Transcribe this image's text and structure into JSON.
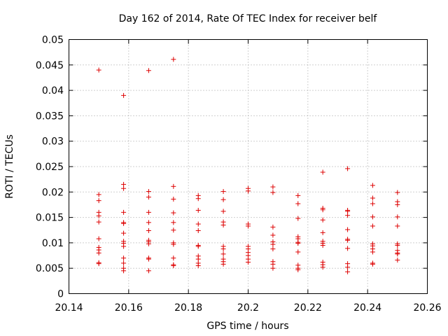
{
  "chart_data": {
    "type": "scatter",
    "title": "Day 162 of 2014, Rate Of TEC Index for receiver belf",
    "xlabel": "GPS time / hours",
    "ylabel": "ROTI / TECUs",
    "xlim": [
      20.14,
      20.26
    ],
    "ylim": [
      0,
      0.05
    ],
    "xticks": [
      "20.14",
      "20.16",
      "20.18",
      "20.2",
      "20.22",
      "20.24",
      "20.26"
    ],
    "yticks": [
      "0",
      "0.005",
      "0.01",
      "0.015",
      "0.02",
      "0.025",
      "0.03",
      "0.035",
      "0.04",
      "0.045",
      "0.05"
    ],
    "grid": true,
    "marker": "+",
    "color": "#dd0000",
    "series": [
      {
        "name": "ROTI",
        "points": [
          [
            20.15,
            0.044
          ],
          [
            20.15,
            0.0195
          ],
          [
            20.15,
            0.0183
          ],
          [
            20.15,
            0.016
          ],
          [
            20.15,
            0.0153
          ],
          [
            20.15,
            0.0141
          ],
          [
            20.15,
            0.0108
          ],
          [
            20.15,
            0.0091
          ],
          [
            20.15,
            0.0086
          ],
          [
            20.15,
            0.008
          ],
          [
            20.15,
            0.0061
          ],
          [
            20.15,
            0.0059
          ],
          [
            20.1583,
            0.039
          ],
          [
            20.1583,
            0.0215
          ],
          [
            20.1583,
            0.0207
          ],
          [
            20.1583,
            0.016
          ],
          [
            20.1583,
            0.014
          ],
          [
            20.1583,
            0.0138
          ],
          [
            20.1583,
            0.0119
          ],
          [
            20.1583,
            0.0103
          ],
          [
            20.1583,
            0.0099
          ],
          [
            20.1583,
            0.0093
          ],
          [
            20.1583,
            0.007
          ],
          [
            20.1583,
            0.006
          ],
          [
            20.1583,
            0.005
          ],
          [
            20.1583,
            0.0045
          ],
          [
            20.1667,
            0.0439
          ],
          [
            20.1667,
            0.0201
          ],
          [
            20.1667,
            0.019
          ],
          [
            20.1667,
            0.016
          ],
          [
            20.1667,
            0.014
          ],
          [
            20.1667,
            0.0124
          ],
          [
            20.1667,
            0.0105
          ],
          [
            20.1667,
            0.0102
          ],
          [
            20.1667,
            0.0098
          ],
          [
            20.1667,
            0.007
          ],
          [
            20.1667,
            0.0068
          ],
          [
            20.1667,
            0.0045
          ],
          [
            20.175,
            0.0461
          ],
          [
            20.175,
            0.0211
          ],
          [
            20.175,
            0.0186
          ],
          [
            20.175,
            0.0159
          ],
          [
            20.175,
            0.014
          ],
          [
            20.175,
            0.0125
          ],
          [
            20.175,
            0.01
          ],
          [
            20.175,
            0.0097
          ],
          [
            20.175,
            0.007
          ],
          [
            20.175,
            0.0057
          ],
          [
            20.175,
            0.0055
          ],
          [
            20.1833,
            0.0193
          ],
          [
            20.1833,
            0.0187
          ],
          [
            20.1833,
            0.0164
          ],
          [
            20.1833,
            0.0137
          ],
          [
            20.1833,
            0.0124
          ],
          [
            20.1833,
            0.0095
          ],
          [
            20.1833,
            0.0093
          ],
          [
            20.1833,
            0.0074
          ],
          [
            20.1833,
            0.0068
          ],
          [
            20.1833,
            0.006
          ],
          [
            20.1833,
            0.0055
          ],
          [
            20.1917,
            0.0201
          ],
          [
            20.1917,
            0.0185
          ],
          [
            20.1917,
            0.0162
          ],
          [
            20.1917,
            0.0141
          ],
          [
            20.1917,
            0.0135
          ],
          [
            20.1917,
            0.0093
          ],
          [
            20.1917,
            0.0088
          ],
          [
            20.1917,
            0.0078
          ],
          [
            20.1917,
            0.0068
          ],
          [
            20.1917,
            0.0063
          ],
          [
            20.1917,
            0.0058
          ],
          [
            20.2,
            0.0207
          ],
          [
            20.2,
            0.0202
          ],
          [
            20.2,
            0.0137
          ],
          [
            20.2,
            0.0133
          ],
          [
            20.2,
            0.0093
          ],
          [
            20.2,
            0.0088
          ],
          [
            20.2,
            0.0081
          ],
          [
            20.2,
            0.0075
          ],
          [
            20.2,
            0.0068
          ],
          [
            20.2,
            0.0062
          ],
          [
            20.2083,
            0.021
          ],
          [
            20.2083,
            0.0199
          ],
          [
            20.2083,
            0.0131
          ],
          [
            20.2083,
            0.0115
          ],
          [
            20.2083,
            0.0102
          ],
          [
            20.2083,
            0.0097
          ],
          [
            20.2083,
            0.0088
          ],
          [
            20.2083,
            0.0063
          ],
          [
            20.2083,
            0.0058
          ],
          [
            20.2083,
            0.005
          ],
          [
            20.2167,
            0.0193
          ],
          [
            20.2167,
            0.0177
          ],
          [
            20.2167,
            0.0148
          ],
          [
            20.2167,
            0.0112
          ],
          [
            20.2167,
            0.0108
          ],
          [
            20.2167,
            0.0101
          ],
          [
            20.2167,
            0.0099
          ],
          [
            20.2167,
            0.0082
          ],
          [
            20.2167,
            0.0056
          ],
          [
            20.2167,
            0.005
          ],
          [
            20.2167,
            0.0047
          ],
          [
            20.225,
            0.0239
          ],
          [
            20.225,
            0.0168
          ],
          [
            20.225,
            0.0165
          ],
          [
            20.225,
            0.0145
          ],
          [
            20.225,
            0.012
          ],
          [
            20.225,
            0.0103
          ],
          [
            20.225,
            0.0099
          ],
          [
            20.225,
            0.0095
          ],
          [
            20.225,
            0.0062
          ],
          [
            20.225,
            0.0057
          ],
          [
            20.225,
            0.0052
          ],
          [
            20.2333,
            0.0246
          ],
          [
            20.2333,
            0.0164
          ],
          [
            20.2333,
            0.0162
          ],
          [
            20.2333,
            0.0154
          ],
          [
            20.2333,
            0.0126
          ],
          [
            20.2333,
            0.0107
          ],
          [
            20.2333,
            0.0105
          ],
          [
            20.2333,
            0.0089
          ],
          [
            20.2333,
            0.0059
          ],
          [
            20.2333,
            0.0052
          ],
          [
            20.2333,
            0.0043
          ],
          [
            20.2417,
            0.0213
          ],
          [
            20.2417,
            0.0188
          ],
          [
            20.2417,
            0.0177
          ],
          [
            20.2417,
            0.0151
          ],
          [
            20.2417,
            0.0133
          ],
          [
            20.2417,
            0.0098
          ],
          [
            20.2417,
            0.0094
          ],
          [
            20.2417,
            0.0088
          ],
          [
            20.2417,
            0.0082
          ],
          [
            20.2417,
            0.006
          ],
          [
            20.2417,
            0.0058
          ],
          [
            20.25,
            0.0199
          ],
          [
            20.25,
            0.0181
          ],
          [
            20.25,
            0.0175
          ],
          [
            20.25,
            0.0151
          ],
          [
            20.25,
            0.0133
          ],
          [
            20.25,
            0.0098
          ],
          [
            20.25,
            0.0095
          ],
          [
            20.25,
            0.0085
          ],
          [
            20.25,
            0.008
          ],
          [
            20.25,
            0.0078
          ],
          [
            20.25,
            0.0066
          ]
        ]
      }
    ]
  }
}
